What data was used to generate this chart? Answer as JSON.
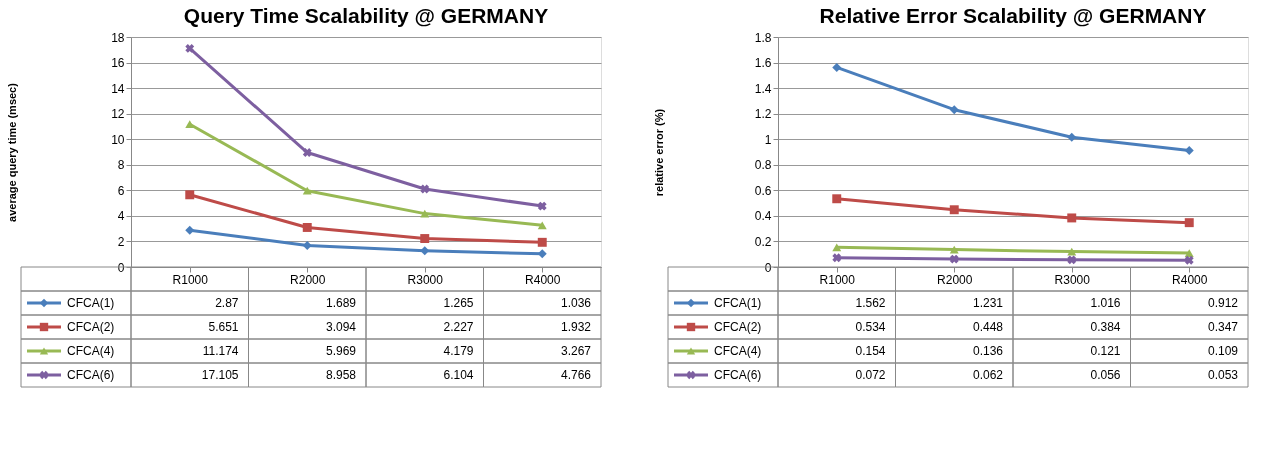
{
  "chart_data": [
    {
      "type": "line",
      "title": "Query Time Scalability @ GERMANY",
      "ylabel": "average query time (msec)",
      "categories": [
        "R1000",
        "R2000",
        "R3000",
        "R4000"
      ],
      "series": [
        {
          "name": "CFCA(1)",
          "color": "#4a7ebb",
          "marker": "diamond",
          "values": [
            2.87,
            1.689,
            1.265,
            1.036
          ]
        },
        {
          "name": "CFCA(2)",
          "color": "#be4b48",
          "marker": "square",
          "values": [
            5.651,
            3.094,
            2.227,
            1.932
          ]
        },
        {
          "name": "CFCA(4)",
          "color": "#98b954",
          "marker": "triangle",
          "values": [
            11.174,
            5.969,
            4.179,
            3.267
          ]
        },
        {
          "name": "CFCA(6)",
          "color": "#7d5fa0",
          "marker": "cross",
          "values": [
            17.105,
            8.958,
            6.104,
            4.766
          ]
        }
      ],
      "ylim": [
        0,
        18
      ],
      "yticks": [
        0,
        2,
        4,
        6,
        8,
        10,
        12,
        14,
        16,
        18
      ],
      "grid": "y",
      "legend": "bottom",
      "data_labels": true,
      "line_style": "solid"
    },
    {
      "type": "line",
      "title": "Relative Error Scalability @ GERMANY",
      "ylabel": "relative error (%)",
      "categories": [
        "R1000",
        "R2000",
        "R3000",
        "R4000"
      ],
      "series": [
        {
          "name": "CFCA(1)",
          "color": "#4a7ebb",
          "marker": "diamond",
          "values": [
            1.562,
            1.231,
            1.016,
            0.912
          ]
        },
        {
          "name": "CFCA(2)",
          "color": "#be4b48",
          "marker": "square",
          "values": [
            0.534,
            0.448,
            0.384,
            0.347
          ]
        },
        {
          "name": "CFCA(4)",
          "color": "#98b954",
          "marker": "triangle",
          "values": [
            0.154,
            0.136,
            0.121,
            0.109
          ]
        },
        {
          "name": "CFCA(6)",
          "color": "#7d5fa0",
          "marker": "cross",
          "values": [
            0.072,
            0.062,
            0.056,
            0.053
          ]
        }
      ],
      "ylim": [
        0,
        1.8
      ],
      "yticks": [
        0,
        0.2,
        0.4,
        0.6,
        0.8,
        1,
        1.2,
        1.4,
        1.6,
        1.8
      ],
      "grid": "y",
      "legend": "bottom",
      "data_labels": true,
      "line_style": "solid"
    }
  ]
}
